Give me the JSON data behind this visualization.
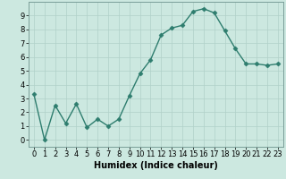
{
  "x": [
    0,
    1,
    2,
    3,
    4,
    5,
    6,
    7,
    8,
    9,
    10,
    11,
    12,
    13,
    14,
    15,
    16,
    17,
    18,
    19,
    20,
    21,
    22,
    23
  ],
  "y": [
    3.3,
    0.0,
    2.5,
    1.2,
    2.6,
    0.9,
    1.5,
    1.0,
    1.5,
    3.2,
    4.8,
    5.8,
    7.6,
    8.1,
    8.3,
    9.3,
    9.5,
    9.2,
    7.9,
    6.6,
    5.5,
    5.5,
    5.4,
    5.5
  ],
  "line_color": "#2e7d6e",
  "marker": "D",
  "marker_size": 2.5,
  "linewidth": 1.0,
  "xlabel": "Humidex (Indice chaleur)",
  "xlim": [
    -0.5,
    23.5
  ],
  "ylim": [
    -0.5,
    10.0
  ],
  "yticks": [
    0,
    1,
    2,
    3,
    4,
    5,
    6,
    7,
    8,
    9
  ],
  "xticks": [
    0,
    1,
    2,
    3,
    4,
    5,
    6,
    7,
    8,
    9,
    10,
    11,
    12,
    13,
    14,
    15,
    16,
    17,
    18,
    19,
    20,
    21,
    22,
    23
  ],
  "bg_color": "#cce8e0",
  "grid_color": "#b0d0c8",
  "xlabel_fontsize": 7.0,
  "tick_fontsize": 6.0,
  "fig_bg": "#cce8e0"
}
